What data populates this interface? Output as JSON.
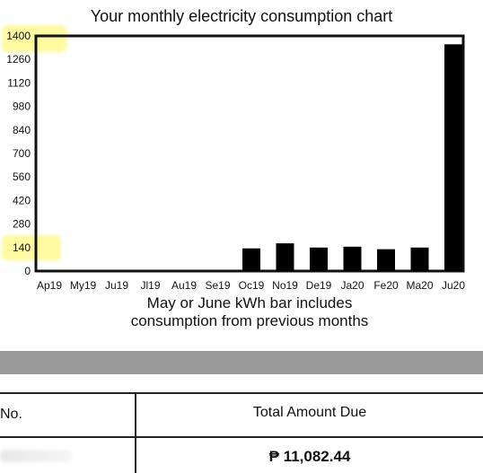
{
  "chart_data": {
    "type": "bar",
    "title": "Your monthly electricity consumption chart",
    "categories": [
      "Ap19",
      "My19",
      "Ju19",
      "Jl19",
      "Au19",
      "Se19",
      "Oc19",
      "No19",
      "De19",
      "Ja20",
      "Fe20",
      "Ma20",
      "Ju20"
    ],
    "values": [
      0,
      0,
      0,
      0,
      0,
      0,
      135,
      165,
      140,
      145,
      130,
      140,
      1350
    ],
    "yticks": [
      "0",
      "140",
      "280",
      "420",
      "560",
      "700",
      "840",
      "980",
      "1120",
      "1260",
      "1400"
    ],
    "ylim": [
      0,
      1400
    ],
    "grid": false,
    "bar_color": "#000000",
    "highlight_color": "#fff34f"
  },
  "caption": {
    "line1": "May or June kWh bar includes",
    "line2": "consumption from previous months"
  },
  "table": {
    "header_left": "No.",
    "header_right": "Total Amount Due",
    "value_right": "₱ 11,082.44"
  }
}
